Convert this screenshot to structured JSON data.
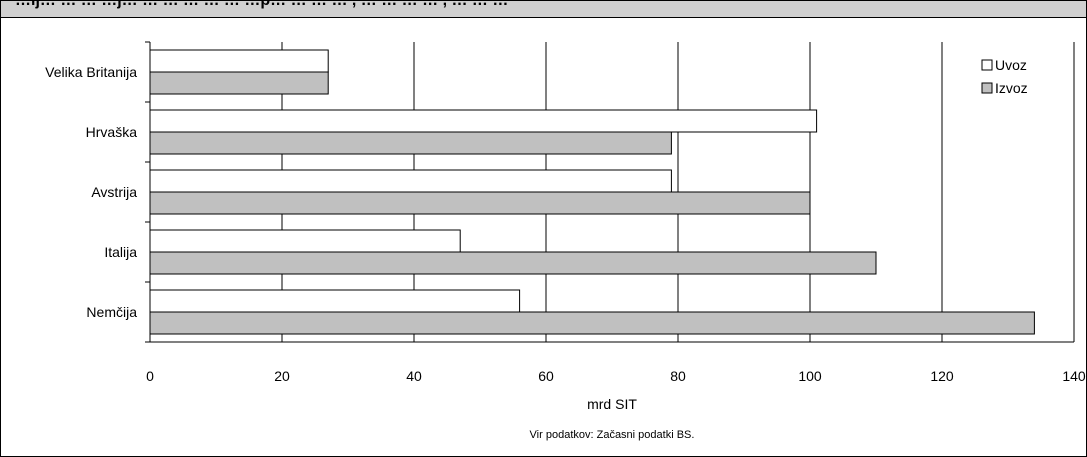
{
  "title": "…ij… … … …j… … … … … … …p… … … … , … … … … , … … …",
  "chart_data": {
    "type": "bar",
    "orientation": "horizontal",
    "categories": [
      "Velika Britanija",
      "Hrvaška",
      "Avstrija",
      "Italija",
      "Nemčija"
    ],
    "series": [
      {
        "name": "Uvoz",
        "color": "#ffffff",
        "values": [
          27,
          101,
          79,
          47,
          56
        ]
      },
      {
        "name": "Izvoz",
        "color": "#c0c0c0",
        "values": [
          27,
          79,
          100,
          110,
          134
        ]
      }
    ],
    "xlim": [
      0,
      140
    ],
    "xticks": [
      0,
      20,
      40,
      60,
      80,
      100,
      120,
      140
    ],
    "xlabel": "mrd SIT",
    "source": "Vir podatkov: Začasni podatki BS.",
    "grid": true,
    "legend": "right"
  }
}
